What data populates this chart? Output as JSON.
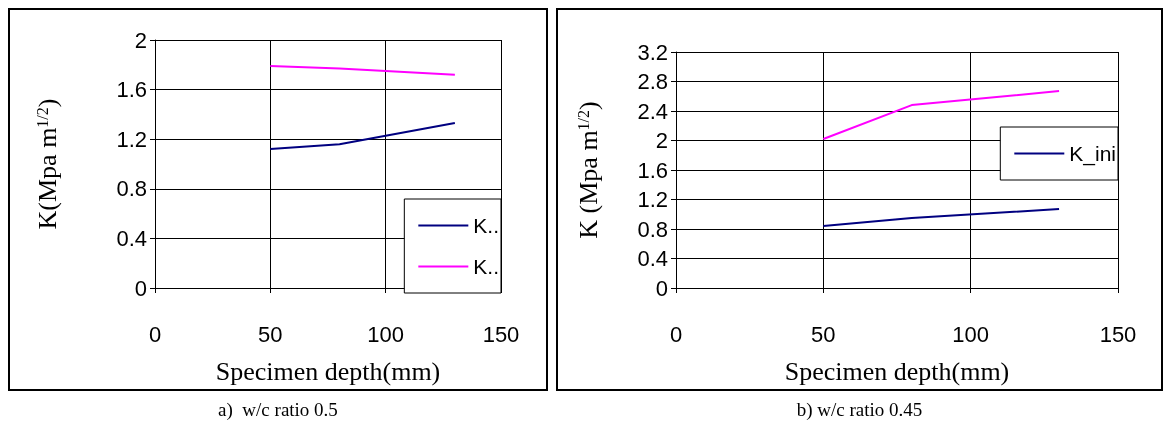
{
  "chart_data": [
    {
      "type": "line",
      "title": "a)  w/c ratio 0.5",
      "xlabel": "Specimen depth(mm)",
      "ylabel": "K(Mpa m$^{1/2}$)",
      "x": [
        50,
        80,
        130
      ],
      "series": [
        {
          "name": "K..",
          "color": "#000080",
          "values": [
            1.12,
            1.16,
            1.33
          ]
        },
        {
          "name": "K..",
          "color": "#ff00ff",
          "values": [
            1.79,
            1.77,
            1.72
          ]
        }
      ],
      "xlim": [
        0,
        150
      ],
      "xticks": [
        0,
        50,
        100,
        150
      ],
      "ylim": [
        0,
        2
      ],
      "yticks": [
        0,
        0.4,
        0.8,
        1.2,
        1.6,
        2
      ],
      "grid": true,
      "legend": "bottom right",
      "marker": "none",
      "line_style": "solid"
    },
    {
      "type": "line",
      "title": "b) w/c ratio 0.45",
      "xlabel": "Specimen depth(mm)",
      "ylabel": "K (Mpa m$^{1/2}$)",
      "x": [
        50,
        80,
        130
      ],
      "series": [
        {
          "name": "K_ini",
          "color": "#000080",
          "values": [
            0.84,
            0.95,
            1.07
          ]
        },
        {
          "color": "#ff00ff",
          "values": [
            2.02,
            2.48,
            2.67
          ]
        }
      ],
      "xlim": [
        0,
        150
      ],
      "xticks": [
        0,
        50,
        100,
        150
      ],
      "ylim": [
        0,
        3.2
      ],
      "yticks": [
        0,
        0.4,
        0.8,
        1.2,
        1.6,
        2,
        2.4,
        2.8,
        3.2
      ],
      "grid": true,
      "legend": "top right",
      "marker": "none",
      "line_style": "solid"
    }
  ]
}
